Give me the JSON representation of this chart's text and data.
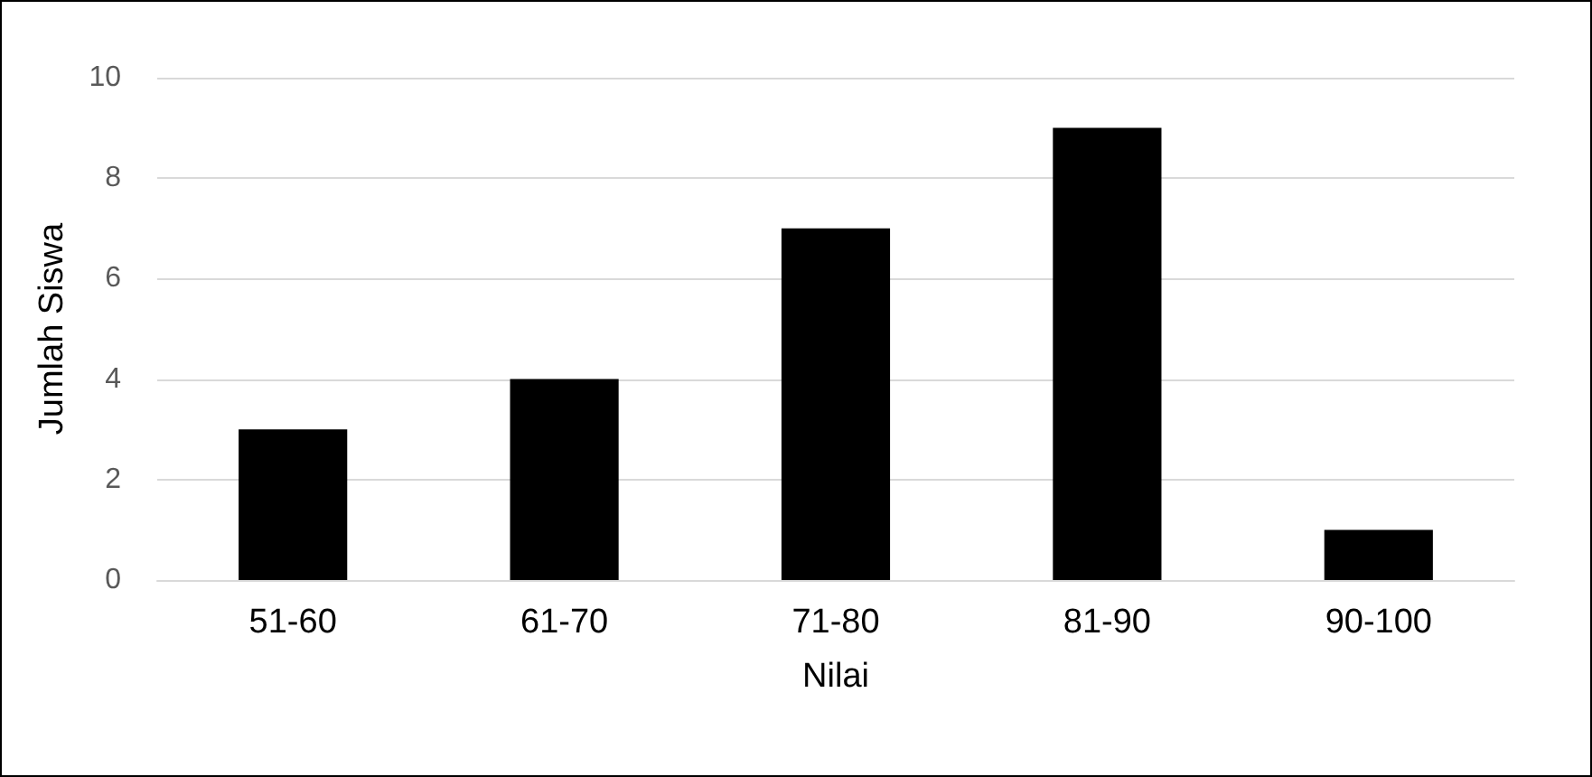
{
  "chart_data": {
    "type": "bar",
    "xlabel": "Nilai",
    "ylabel": "Jumlah Siswa",
    "categories": [
      "51-60",
      "61-70",
      "71-80",
      "81-90",
      "90-100"
    ],
    "values": [
      3,
      4,
      7,
      9,
      1
    ],
    "color": "#000000",
    "ylim": [
      0,
      10
    ],
    "yticks": [
      0,
      2,
      4,
      6,
      8,
      10
    ],
    "grid": "y"
  }
}
